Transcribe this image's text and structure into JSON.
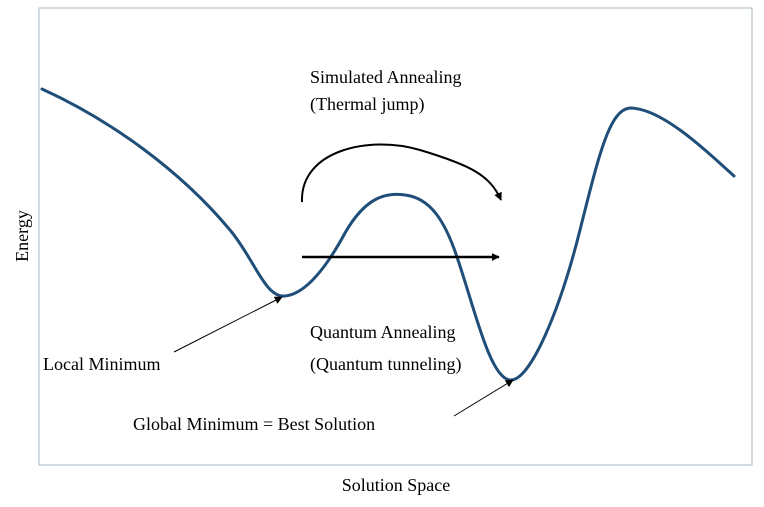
{
  "labels": {
    "y_axis": "Energy",
    "x_axis": "Solution Space",
    "simulated_line1": "Simulated Annealing",
    "simulated_line2": "(Thermal jump)",
    "quantum_line1": "Quantum Annealing",
    "quantum_line2": "(Quantum tunneling)",
    "local_minimum": "Local Minimum",
    "global_minimum": "Global Minimum = Best Solution"
  },
  "colors": {
    "curve": "#1f4e79",
    "frame": "#a6b7c2",
    "arrows": "#000000",
    "text": "#000000"
  }
}
